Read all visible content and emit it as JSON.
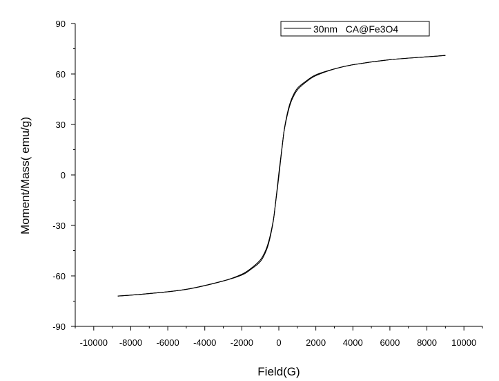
{
  "chart_data": {
    "type": "line",
    "xlabel": "Field(G)",
    "ylabel": "Moment/Mass( emu/g)",
    "xlim": [
      -11000,
      11000
    ],
    "ylim": [
      -90,
      90
    ],
    "xticks": [
      -10000,
      -8000,
      -6000,
      -4000,
      -2000,
      0,
      2000,
      4000,
      6000,
      8000,
      10000
    ],
    "yticks": [
      -90,
      -60,
      -30,
      0,
      30,
      60,
      90
    ],
    "grid": false,
    "legend": "top-right",
    "series": [
      {
        "name": "30nm   CA@Fe3O4",
        "color": "#000000",
        "branch": "increasing-field",
        "x": [
          -8700,
          -7000,
          -5000,
          -3000,
          -2000,
          -1500,
          -1000,
          -700,
          -500,
          -300,
          -200,
          -100,
          0,
          100,
          200,
          300,
          500,
          700,
          1000,
          1500,
          2000,
          3000,
          4000,
          6000,
          8000,
          9000
        ],
        "y": [
          -72,
          -70.5,
          -68,
          -63,
          -59,
          -55.5,
          -50.5,
          -44.5,
          -37.5,
          -27,
          -19,
          -10,
          -1,
          9,
          18.5,
          27.5,
          38.5,
          45.5,
          51.5,
          56,
          59.5,
          63,
          65.5,
          68.5,
          70.2,
          71
        ]
      },
      {
        "name": "",
        "color": "#000000",
        "branch": "decreasing-field",
        "x": [
          9000,
          8000,
          6000,
          4000,
          3000,
          2000,
          1500,
          1000,
          700,
          500,
          300,
          200,
          100,
          0,
          -100,
          -200,
          -300,
          -500,
          -700,
          -1000,
          -1500,
          -2000,
          -3000,
          -5000,
          -7000,
          -8700
        ],
        "y": [
          71,
          70.2,
          68.5,
          65.5,
          63,
          59,
          55.5,
          50.5,
          44.5,
          37.5,
          27,
          19,
          10,
          1,
          -9,
          -18.5,
          -27.5,
          -38.5,
          -45.5,
          -51.5,
          -56,
          -59.5,
          -63,
          -68,
          -70.5,
          -72
        ]
      }
    ]
  }
}
